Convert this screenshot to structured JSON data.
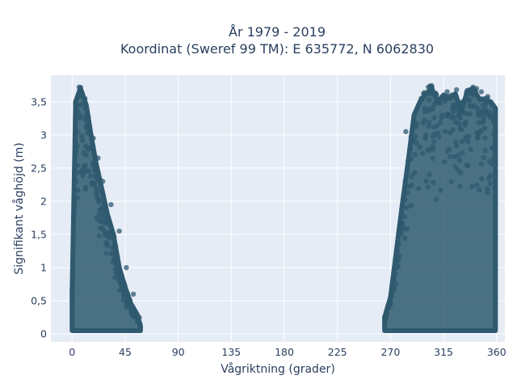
{
  "chart_data": {
    "type": "scatter",
    "title": "År 1979 - 2019",
    "subtitle": "Koordinat (Sweref 99 TM): E 635772, N 6062830",
    "xlabel": "Vågriktning (grader)",
    "ylabel": "Signifikant våghöjd (m)",
    "xlim": [
      -18,
      367
    ],
    "ylim": [
      -0.12,
      3.9
    ],
    "xticks": [
      0,
      45,
      90,
      135,
      180,
      225,
      270,
      315,
      360
    ],
    "xtick_labels": [
      "0",
      "45",
      "90",
      "135",
      "180",
      "225",
      "270",
      "315",
      "360"
    ],
    "yticks": [
      0,
      0.5,
      1,
      1.5,
      2,
      2.5,
      3,
      3.5
    ],
    "ytick_labels": [
      "0",
      "0,5",
      "1",
      "1,5",
      "2",
      "2,5",
      "3",
      "3,5"
    ],
    "grid": true,
    "marker_color": "#2f5a6f",
    "background_color": "#e5ecf6",
    "series": [
      {
        "clusters": [
          {
            "envelope": [
              [
                0,
                0.05,
                0.6
              ],
              [
                3,
                0.05,
                3.5
              ],
              [
                7,
                0.05,
                3.7
              ],
              [
                12,
                0.05,
                3.45
              ],
              [
                16,
                0.05,
                3.0
              ],
              [
                20,
                0.05,
                2.6
              ],
              [
                25,
                0.05,
                2.2
              ],
              [
                30,
                0.05,
                1.8
              ],
              [
                35,
                0.05,
                1.5
              ],
              [
                40,
                0.05,
                1.0
              ],
              [
                45,
                0.05,
                0.7
              ],
              [
                50,
                0.05,
                0.45
              ],
              [
                55,
                0.05,
                0.3
              ],
              [
                58,
                0.05,
                0.12
              ]
            ]
          },
          {
            "envelope": [
              [
                265,
                0.05,
                0.25
              ],
              [
                270,
                0.05,
                0.55
              ],
              [
                275,
                0.05,
                1.25
              ],
              [
                280,
                0.05,
                1.95
              ],
              [
                285,
                0.05,
                2.6
              ],
              [
                290,
                0.05,
                3.3
              ],
              [
                295,
                0.05,
                3.5
              ],
              [
                300,
                0.05,
                3.62
              ],
              [
                305,
                0.05,
                3.7
              ],
              [
                310,
                0.05,
                3.5
              ],
              [
                315,
                0.05,
                3.6
              ],
              [
                320,
                0.05,
                3.55
              ],
              [
                325,
                0.05,
                3.62
              ],
              [
                330,
                0.05,
                3.35
              ],
              [
                335,
                0.05,
                3.65
              ],
              [
                340,
                0.05,
                3.7
              ],
              [
                345,
                0.05,
                3.55
              ],
              [
                350,
                0.05,
                3.52
              ],
              [
                355,
                0.05,
                3.5
              ],
              [
                359,
                0.05,
                3.4
              ]
            ]
          }
        ],
        "outliers": [
          [
            6,
            3.72
          ],
          [
            7,
            3.68
          ],
          [
            8,
            3.6
          ],
          [
            11,
            3.4
          ],
          [
            3,
            3.48
          ],
          [
            14,
            3.2
          ],
          [
            18,
            2.95
          ],
          [
            22,
            2.65
          ],
          [
            26,
            2.3
          ],
          [
            33,
            1.95
          ],
          [
            40,
            1.55
          ],
          [
            46,
            1.0
          ],
          [
            52,
            0.6
          ],
          [
            57,
            0.25
          ],
          [
            283,
            3.05
          ],
          [
            290,
            3.2
          ],
          [
            296,
            3.55
          ],
          [
            298,
            3.62
          ],
          [
            302,
            3.72
          ],
          [
            305,
            3.74
          ],
          [
            309,
            3.6
          ],
          [
            312,
            3.48
          ],
          [
            318,
            3.65
          ],
          [
            322,
            3.6
          ],
          [
            326,
            3.68
          ],
          [
            331,
            3.5
          ],
          [
            337,
            3.68
          ],
          [
            340,
            3.72
          ],
          [
            343,
            3.7
          ],
          [
            347,
            3.65
          ],
          [
            352,
            3.55
          ],
          [
            356,
            3.45
          ],
          [
            358,
            3.3
          ],
          [
            300,
            3.0
          ],
          [
            336,
            2.9
          ],
          [
            344,
            2.95
          ],
          [
            350,
            3.1
          ]
        ]
      }
    ]
  }
}
